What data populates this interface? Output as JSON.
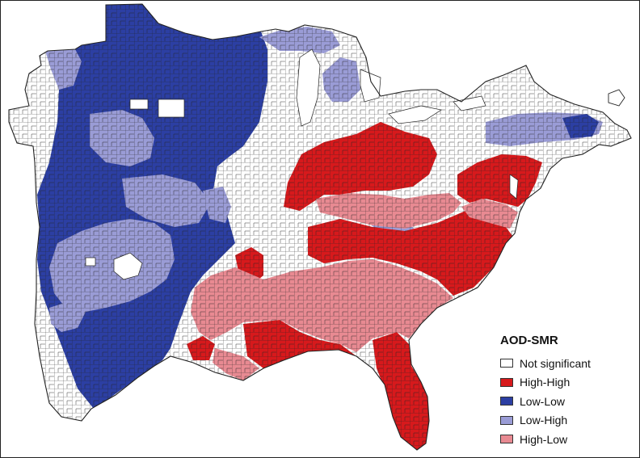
{
  "legend": {
    "title": "AOD-SMR",
    "items": [
      {
        "label": "Not significant",
        "color": "#ffffff"
      },
      {
        "label": "High-High",
        "color": "#d7191c"
      },
      {
        "label": "Low-Low",
        "color": "#2c3fa3"
      },
      {
        "label": "Low-High",
        "color": "#9a9cd6"
      },
      {
        "label": "High-Low",
        "color": "#e88a92"
      }
    ]
  },
  "colors": {
    "not_significant": "#ffffff",
    "high_high": "#d7191c",
    "low_low": "#2c3fa3",
    "low_high": "#9a9cd6",
    "high_low": "#e88a92",
    "county_border": "#222222"
  }
}
